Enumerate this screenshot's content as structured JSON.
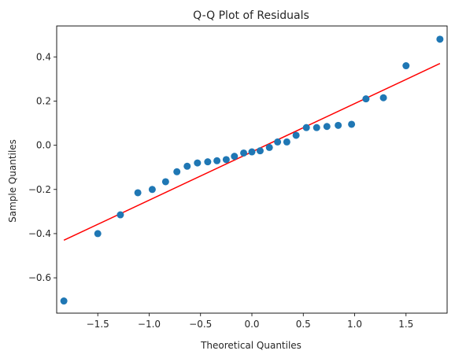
{
  "chart_data": {
    "type": "scatter",
    "title": "Q-Q Plot of Residuals",
    "xlabel": "Theoretical Quantiles",
    "ylabel": "Sample Quantiles",
    "xlim": [
      -1.9,
      1.9
    ],
    "ylim": [
      -0.76,
      0.54
    ],
    "x_ticks": [
      -1.5,
      -1.0,
      -0.5,
      0.0,
      0.5,
      1.0,
      1.5
    ],
    "x_tick_labels": [
      "−1.5",
      "−1.0",
      "−0.5",
      "0.0",
      "0.5",
      "1.0",
      "1.5"
    ],
    "y_ticks": [
      -0.6,
      -0.4,
      -0.2,
      0.0,
      0.2,
      0.4
    ],
    "y_tick_labels": [
      "−0.6",
      "−0.4",
      "−0.2",
      "0.0",
      "0.2",
      "0.4"
    ],
    "grid": false,
    "colors": {
      "points": "#1f77b4",
      "reference_line": "#ff0000",
      "axes": "#000000",
      "text": "#262626"
    },
    "points": {
      "x": [
        -1.83,
        -1.5,
        -1.28,
        -1.11,
        -0.97,
        -0.84,
        -0.73,
        -0.63,
        -0.53,
        -0.43,
        -0.34,
        -0.25,
        -0.17,
        -0.08,
        0.0,
        0.08,
        0.17,
        0.25,
        0.34,
        0.43,
        0.53,
        0.63,
        0.73,
        0.84,
        0.97,
        1.11,
        1.28,
        1.5,
        1.83
      ],
      "y": [
        -0.705,
        -0.4,
        -0.315,
        -0.215,
        -0.2,
        -0.165,
        -0.12,
        -0.095,
        -0.08,
        -0.075,
        -0.07,
        -0.065,
        -0.05,
        -0.035,
        -0.03,
        -0.025,
        -0.01,
        0.015,
        0.015,
        0.045,
        0.08,
        0.08,
        0.085,
        0.09,
        0.095,
        0.21,
        0.215,
        0.36,
        0.48
      ]
    },
    "reference_line": {
      "x": [
        -1.83,
        1.83
      ],
      "y": [
        -0.43,
        0.37
      ]
    }
  }
}
